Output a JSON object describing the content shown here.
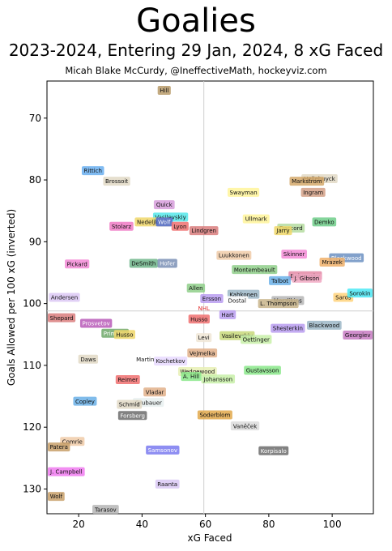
{
  "title": "Goalies",
  "subtitle": "2023-2024, Entering 29 Jan, 2024, 8 xG Faced",
  "credit": "Micah Blake McCurdy, @IneffectiveMath, hockeyviz.com",
  "chart_data": {
    "type": "scatter",
    "xlabel": "xG Faced",
    "ylabel": "Goals Allowed per 100 xG (inverted)",
    "xlim": [
      10,
      113
    ],
    "ylim": [
      134,
      64
    ],
    "y_inverted": true,
    "xticks": [
      20,
      40,
      60,
      80,
      100
    ],
    "yticks": [
      70,
      80,
      90,
      100,
      110,
      120,
      130
    ],
    "reference_lines": {
      "x": 59.5,
      "y": 101.2
    },
    "reference_label": "NHL",
    "points": [
      {
        "name": "Hill",
        "x": 47,
        "y": 65.5,
        "color": "#b89b6a"
      },
      {
        "name": "Rittich",
        "x": 24.5,
        "y": 78.5,
        "color": "#6aaff0"
      },
      {
        "name": "Brossoit",
        "x": 32,
        "y": 80.2,
        "color": "#e2d9c6"
      },
      {
        "name": "Hellebuyck",
        "x": 96,
        "y": 79.8,
        "color": "#e2d9c6"
      },
      {
        "name": "Markstrom",
        "x": 92,
        "y": 80.2,
        "color": "#d4a86a"
      },
      {
        "name": "Ingram",
        "x": 94,
        "y": 82,
        "color": "#d4a086"
      },
      {
        "name": "Swayman",
        "x": 72,
        "y": 82,
        "color": "#fff59a"
      },
      {
        "name": "Quick",
        "x": 47,
        "y": 84,
        "color": "#d79ddc"
      },
      {
        "name": "Vasilevskiy",
        "x": 49,
        "y": 86,
        "color": "#55e8ea"
      },
      {
        "name": "Nedeljkovic",
        "x": 43.5,
        "y": 86.8,
        "color": "#f0d76a"
      },
      {
        "name": "Wolf",
        "x": 47,
        "y": 86.8,
        "color": "#4e6ad4"
      },
      {
        "name": "Stolarz",
        "x": 33.5,
        "y": 87.5,
        "color": "#f07ac4"
      },
      {
        "name": "Lyon",
        "x": 52,
        "y": 87.5,
        "color": "#f07070"
      },
      {
        "name": "Lindgren",
        "x": 59.5,
        "y": 88.2,
        "color": "#d97c7c"
      },
      {
        "name": "Ullmark",
        "x": 76,
        "y": 86.3,
        "color": "#fff59a"
      },
      {
        "name": "Demko",
        "x": 97.5,
        "y": 86.8,
        "color": "#6fce8a"
      },
      {
        "name": "Daccord",
        "x": 87,
        "y": 87.8,
        "color": "#b5dca0"
      },
      {
        "name": "Jarry",
        "x": 84.5,
        "y": 88.2,
        "color": "#f0d76a"
      },
      {
        "name": "DeSmith",
        "x": 40.5,
        "y": 93.5,
        "color": "#6fb58a"
      },
      {
        "name": "Hofer",
        "x": 48,
        "y": 93.5,
        "color": "#7a8fb5"
      },
      {
        "name": "Pickard",
        "x": 19.5,
        "y": 93.6,
        "color": "#f38ad6"
      },
      {
        "name": "Luukkonen",
        "x": 69,
        "y": 92.2,
        "color": "#f0cba8"
      },
      {
        "name": "Skinner",
        "x": 88,
        "y": 92,
        "color": "#f38ad6"
      },
      {
        "name": "Blackwood",
        "x": 104.5,
        "y": 92.6,
        "color": "#6c91c2"
      },
      {
        "name": "Mrazek",
        "x": 100,
        "y": 93.3,
        "color": "#f0b06a"
      },
      {
        "name": "Montembeault",
        "x": 75.5,
        "y": 94.5,
        "color": "#8fcf8a"
      },
      {
        "name": "Bobrovsky",
        "x": 91.5,
        "y": 95.5,
        "color": "#e48aa6"
      },
      {
        "name": "J. Gibson",
        "x": 92,
        "y": 95.9,
        "color": "#f0a8c2"
      },
      {
        "name": "Talbot",
        "x": 83.5,
        "y": 96.3,
        "color": "#6ab0e8"
      },
      {
        "name": "Andersen",
        "x": 15.5,
        "y": 99,
        "color": "#dcc8f5"
      },
      {
        "name": "Allen",
        "x": 57,
        "y": 97.5,
        "color": "#8fcf8a"
      },
      {
        "name": "Ersson",
        "x": 62,
        "y": 99.2,
        "color": "#b99cf0"
      },
      {
        "name": "Kahkonen",
        "x": 72,
        "y": 98.5,
        "color": "#9cb7c7"
      },
      {
        "name": "Dostal",
        "x": 70,
        "y": 99.5,
        "color": "#ffffff"
      },
      {
        "name": "Merzlikins",
        "x": 86,
        "y": 99.5,
        "color": "#b5b5b5"
      },
      {
        "name": "L. Thompson",
        "x": 83,
        "y": 100,
        "color": "#c8b48a"
      },
      {
        "name": "Saros",
        "x": 103.5,
        "y": 99,
        "color": "#ffd27a"
      },
      {
        "name": "Sorokin",
        "x": 110.5,
        "y": 98.3,
        "color": "#4ae8f5"
      },
      {
        "name": "Shepard",
        "x": 12.5,
        "y": 102.3,
        "color": "#d97c7c"
      },
      {
        "name": "Prosvetov",
        "x": 25.5,
        "y": 103.2,
        "color": "#b85ab8"
      },
      {
        "name": "Husso",
        "x": 58,
        "y": 102.5,
        "color": "#f07070"
      },
      {
        "name": "Hart",
        "x": 67,
        "y": 101.8,
        "color": "#b99cf0"
      },
      {
        "name": "Blackwood",
        "x": 97.5,
        "y": 103.5,
        "color": "#9cb7c7"
      },
      {
        "name": "Shesterkin",
        "x": 86,
        "y": 104,
        "color": "#b99cf0"
      },
      {
        "name": "Georgiev",
        "x": 108.5,
        "y": 105.1,
        "color": "#c77ac2"
      },
      {
        "name": "Primeau",
        "x": 31.5,
        "y": 104.8,
        "color": "#6fa86a"
      },
      {
        "name": "Husso",
        "x": 34.5,
        "y": 105,
        "color": "#f0d76a"
      },
      {
        "name": "Levi",
        "x": 59.5,
        "y": 105.5,
        "color": "#f0e6d6"
      },
      {
        "name": "Vasilevskiy",
        "x": 70,
        "y": 105.2,
        "color": "#c8d87a"
      },
      {
        "name": "Oettinger",
        "x": 76,
        "y": 105.8,
        "color": "#c8f0a8"
      },
      {
        "name": "Vejmelka",
        "x": 59,
        "y": 108,
        "color": "#e2b08a"
      },
      {
        "name": "Daws",
        "x": 23,
        "y": 109,
        "color": "#e2d9c6"
      },
      {
        "name": "Martin",
        "x": 41,
        "y": 109,
        "color": "#ffffff"
      },
      {
        "name": "Kochetkov",
        "x": 49,
        "y": 109.3,
        "color": "#e8d9ff"
      },
      {
        "name": "Gustavsson",
        "x": 78,
        "y": 110.8,
        "color": "#8ae88a"
      },
      {
        "name": "Wedgewood",
        "x": 57.5,
        "y": 111,
        "color": "#e8f0b5"
      },
      {
        "name": "A. Hill",
        "x": 55.5,
        "y": 111.8,
        "color": "#8ae88a"
      },
      {
        "name": "Johansson",
        "x": 64,
        "y": 112.2,
        "color": "#c8f0a8"
      },
      {
        "name": "Reimer",
        "x": 35.5,
        "y": 112.3,
        "color": "#f07070"
      },
      {
        "name": "Vladar",
        "x": 44,
        "y": 114.3,
        "color": "#e2b08a"
      },
      {
        "name": "Copley",
        "x": 22,
        "y": 115.8,
        "color": "#6ab0e8"
      },
      {
        "name": "Grubauer",
        "x": 42,
        "y": 116,
        "color": "#e8f0f0"
      },
      {
        "name": "Schmid",
        "x": 36,
        "y": 116.3,
        "color": "#e2d9c6"
      },
      {
        "name": "Forsberg",
        "x": 37,
        "y": 118.1,
        "color": "#6c6c6c"
      },
      {
        "name": "Soderblom",
        "x": 63,
        "y": 118,
        "color": "#e2a84a"
      },
      {
        "name": "Vaněček",
        "x": 72.5,
        "y": 119.8,
        "color": "#dcdcdc"
      },
      {
        "name": "Comrie",
        "x": 18,
        "y": 122.3,
        "color": "#f0cba8"
      },
      {
        "name": "Patera",
        "x": 12.5,
        "y": 123.2,
        "color": "#c8a06a"
      },
      {
        "name": "Samsonov",
        "x": 46.5,
        "y": 123.7,
        "color": "#7a7af0"
      },
      {
        "name": "Korpisalo",
        "x": 81.5,
        "y": 123.8,
        "color": "#6c6c6c"
      },
      {
        "name": "J. Campbell",
        "x": 16,
        "y": 127.2,
        "color": "#f07af0"
      },
      {
        "name": "Raanta",
        "x": 48,
        "y": 129.2,
        "color": "#d9c8f5"
      },
      {
        "name": "Wolf",
        "x": 12,
        "y": 131.2,
        "color": "#c8a06a"
      },
      {
        "name": "Tarasov",
        "x": 28.5,
        "y": 133.3,
        "color": "#b5b5b5"
      }
    ]
  }
}
